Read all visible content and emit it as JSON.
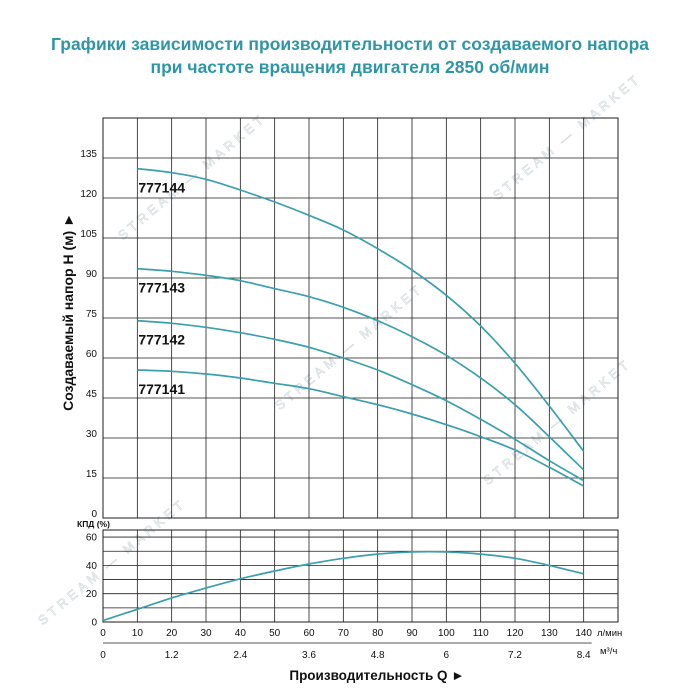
{
  "title": {
    "line1": "Графики зависимости производительности от создаваемого напора",
    "line2": "при частоте вращения двигателя 2850 об/мин"
  },
  "colors": {
    "title": "#2f96a7",
    "curve": "#3a9fae",
    "grid": "#1e1e1e",
    "text": "#111111",
    "watermark": "#d6dcdf"
  },
  "watermark": "STREAM — MARKET",
  "chart_data": [
    {
      "type": "line",
      "ylabel": "Создаваемый напор H (м) ►",
      "xlim": [
        0,
        150
      ],
      "ylim": [
        0,
        150
      ],
      "y_ticks": [
        0,
        15,
        30,
        45,
        60,
        75,
        90,
        105,
        120,
        135
      ],
      "grid": true,
      "series": [
        {
          "name": "777144",
          "x": [
            10,
            20,
            30,
            40,
            50,
            60,
            70,
            80,
            90,
            100,
            110,
            120,
            130,
            140
          ],
          "y": [
            131,
            129.5,
            127,
            123,
            118.5,
            113.5,
            108,
            101,
            93,
            83.5,
            72,
            58,
            42,
            25
          ]
        },
        {
          "name": "777143",
          "x": [
            10,
            20,
            30,
            40,
            50,
            60,
            70,
            80,
            90,
            100,
            110,
            120,
            130,
            140
          ],
          "y": [
            93.5,
            92.5,
            91,
            89,
            86,
            83,
            79,
            74,
            68,
            61,
            52.5,
            42.5,
            30.5,
            18
          ]
        },
        {
          "name": "777142",
          "x": [
            10,
            20,
            30,
            40,
            50,
            60,
            70,
            80,
            90,
            100,
            110,
            120,
            130,
            140
          ],
          "y": [
            74,
            73,
            71.5,
            69.5,
            67,
            64,
            60,
            55.5,
            50,
            44,
            37,
            29.5,
            21.5,
            14
          ]
        },
        {
          "name": "777141",
          "x": [
            10,
            20,
            30,
            40,
            50,
            60,
            70,
            80,
            90,
            100,
            110,
            120,
            130,
            140
          ],
          "y": [
            55.5,
            55,
            54,
            52.5,
            50.5,
            48.5,
            45.5,
            42.5,
            39,
            35,
            30.5,
            25.5,
            19,
            12
          ]
        }
      ]
    },
    {
      "type": "line",
      "ylabel": "КПД (%)",
      "xlabel": "Производительность Q ►",
      "xlim": [
        0,
        150
      ],
      "ylim": [
        0,
        65
      ],
      "y_ticks": [
        0,
        20,
        40,
        60
      ],
      "y_grid": [
        10,
        20,
        30,
        40,
        50,
        60
      ],
      "x_ticks": [
        0,
        10,
        20,
        30,
        40,
        50,
        60,
        70,
        80,
        90,
        100,
        110,
        120,
        130,
        140
      ],
      "x_unit": "л/мин",
      "x2_ticks": [
        0,
        1.2,
        2.4,
        3.6,
        4.8,
        6,
        7.2,
        8.4
      ],
      "x2_unit": "м³/ч",
      "grid": true,
      "series": [
        {
          "x": [
            0,
            10,
            20,
            30,
            40,
            50,
            60,
            70,
            80,
            90,
            100,
            110,
            120,
            130,
            140
          ],
          "y": [
            1,
            9,
            17,
            24,
            30.5,
            36,
            41,
            45,
            48,
            49.5,
            49.5,
            48,
            45,
            40,
            34
          ]
        }
      ]
    }
  ]
}
